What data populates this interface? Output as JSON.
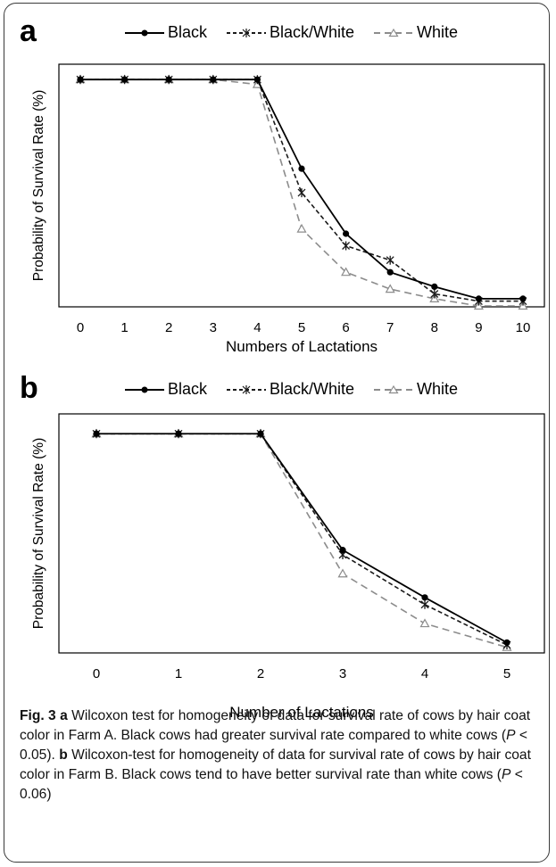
{
  "legend": {
    "black": "Black",
    "black_white": "Black/White",
    "white": "White"
  },
  "colors": {
    "black": "#000000",
    "black_white": "#1a1a1a",
    "white": "#8c8c8c"
  },
  "caption": {
    "fig_label": "Fig. 3",
    "a_label": "a",
    "a_text": "Wilcoxon test for homogeneity of data for survival rate of cows by hair coat color in Farm A. Black cows had greater survival rate compared to white cows (",
    "a_p": "P",
    "a_p_value": " < 0.05).",
    "b_label": "b",
    "b_text": "Wilcoxon-test for homogeneity of data for survival rate of cows by hair coat color in Farm B. Black cows tend to have better survival rate than white cows (",
    "b_p": "P",
    "b_p_value": " < 0.06)"
  },
  "chart_data": [
    {
      "panel": "a",
      "type": "line",
      "xlabel": "Numbers of Lactations",
      "ylabel": "Probability of Survival Rate (%)",
      "x": [
        0,
        1,
        2,
        3,
        4,
        5,
        6,
        7,
        8,
        9,
        10
      ],
      "xlim": [
        0,
        10
      ],
      "ylim": [
        0,
        1
      ],
      "legend_position": "top",
      "grid": false,
      "series": [
        {
          "name": "Black",
          "key": "black",
          "values": [
            0.94,
            0.94,
            0.94,
            0.94,
            0.94,
            0.57,
            0.3,
            0.14,
            0.08,
            0.03,
            0.03
          ]
        },
        {
          "name": "Black/White",
          "key": "black_white",
          "values": [
            0.94,
            0.94,
            0.94,
            0.94,
            0.94,
            0.47,
            0.25,
            0.19,
            0.05,
            0.02,
            0.02
          ]
        },
        {
          "name": "White",
          "key": "white",
          "values": [
            0.94,
            0.94,
            0.94,
            0.94,
            0.92,
            0.32,
            0.14,
            0.07,
            0.03,
            0.0,
            0.0
          ]
        }
      ]
    },
    {
      "panel": "b",
      "type": "line",
      "xlabel": "Number of Lactations",
      "ylabel": "Probability of Survival Rate (%)",
      "x": [
        0,
        1,
        2,
        3,
        4,
        5
      ],
      "xlim": [
        0,
        5
      ],
      "ylim": [
        0,
        1
      ],
      "legend_position": "top",
      "grid": false,
      "series": [
        {
          "name": "Black",
          "key": "black",
          "values": [
            0.92,
            0.92,
            0.92,
            0.43,
            0.23,
            0.04
          ]
        },
        {
          "name": "Black/White",
          "key": "black_white",
          "values": [
            0.92,
            0.92,
            0.92,
            0.41,
            0.2,
            0.03
          ]
        },
        {
          "name": "White",
          "key": "white",
          "values": [
            0.92,
            0.92,
            0.92,
            0.33,
            0.12,
            0.02
          ]
        }
      ]
    }
  ]
}
